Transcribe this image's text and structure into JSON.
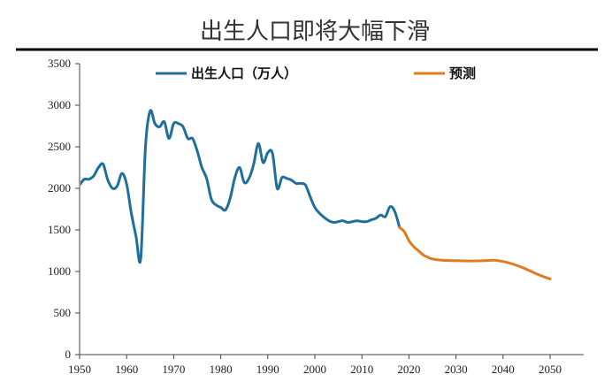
{
  "chart_data": {
    "type": "line",
    "title": "出生人口即将大幅下滑",
    "xlim": [
      1950,
      2056
    ],
    "ylim": [
      0,
      3500
    ],
    "x_ticks": [
      1950,
      1960,
      1970,
      1980,
      1990,
      2000,
      2010,
      2020,
      2030,
      2040,
      2050
    ],
    "y_ticks": [
      0,
      500,
      1000,
      1500,
      2000,
      2500,
      3000,
      3500
    ],
    "grid": false,
    "legend_position": "top",
    "series": [
      {
        "name": "出生人口（万人）",
        "color": "#1f6f9b",
        "points": [
          [
            1949,
            1950
          ],
          [
            1950,
            2040
          ],
          [
            1951,
            2110
          ],
          [
            1952,
            2110
          ],
          [
            1953,
            2150
          ],
          [
            1954,
            2250
          ],
          [
            1955,
            2290
          ],
          [
            1956,
            2100
          ],
          [
            1957,
            2000
          ],
          [
            1958,
            2030
          ],
          [
            1959,
            2180
          ],
          [
            1960,
            2050
          ],
          [
            1961,
            1700
          ],
          [
            1962,
            1420
          ],
          [
            1963,
            1160
          ],
          [
            1964,
            2500
          ],
          [
            1965,
            2930
          ],
          [
            1966,
            2780
          ],
          [
            1967,
            2740
          ],
          [
            1968,
            2800
          ],
          [
            1969,
            2600
          ],
          [
            1970,
            2780
          ],
          [
            1971,
            2780
          ],
          [
            1972,
            2740
          ],
          [
            1973,
            2600
          ],
          [
            1974,
            2600
          ],
          [
            1975,
            2450
          ],
          [
            1976,
            2250
          ],
          [
            1977,
            2120
          ],
          [
            1978,
            1870
          ],
          [
            1979,
            1800
          ],
          [
            1980,
            1770
          ],
          [
            1981,
            1740
          ],
          [
            1982,
            1880
          ],
          [
            1983,
            2130
          ],
          [
            1984,
            2250
          ],
          [
            1985,
            2070
          ],
          [
            1986,
            2120
          ],
          [
            1987,
            2290
          ],
          [
            1988,
            2540
          ],
          [
            1989,
            2310
          ],
          [
            1990,
            2430
          ],
          [
            1991,
            2420
          ],
          [
            1992,
            2000
          ],
          [
            1993,
            2130
          ],
          [
            1994,
            2120
          ],
          [
            1995,
            2100
          ],
          [
            1996,
            2060
          ],
          [
            1997,
            2060
          ],
          [
            1998,
            2040
          ],
          [
            1999,
            1900
          ],
          [
            2000,
            1770
          ],
          [
            2001,
            1700
          ],
          [
            2002,
            1650
          ],
          [
            2003,
            1610
          ],
          [
            2004,
            1590
          ],
          [
            2005,
            1600
          ],
          [
            2006,
            1610
          ],
          [
            2007,
            1590
          ],
          [
            2008,
            1600
          ],
          [
            2009,
            1610
          ],
          [
            2010,
            1600
          ],
          [
            2011,
            1600
          ],
          [
            2012,
            1620
          ],
          [
            2013,
            1640
          ],
          [
            2014,
            1680
          ],
          [
            2015,
            1660
          ],
          [
            2016,
            1780
          ],
          [
            2017,
            1720
          ],
          [
            2018,
            1530
          ]
        ]
      },
      {
        "name": "预测",
        "color": "#e07b1f",
        "points": [
          [
            2018,
            1530
          ],
          [
            2019,
            1480
          ],
          [
            2020,
            1370
          ],
          [
            2021,
            1300
          ],
          [
            2022,
            1250
          ],
          [
            2023,
            1200
          ],
          [
            2024,
            1170
          ],
          [
            2025,
            1150
          ],
          [
            2027,
            1135
          ],
          [
            2030,
            1130
          ],
          [
            2033,
            1127
          ],
          [
            2036,
            1130
          ],
          [
            2038,
            1135
          ],
          [
            2040,
            1120
          ],
          [
            2042,
            1090
          ],
          [
            2044,
            1050
          ],
          [
            2046,
            1000
          ],
          [
            2048,
            950
          ],
          [
            2050,
            910
          ]
        ]
      }
    ]
  }
}
